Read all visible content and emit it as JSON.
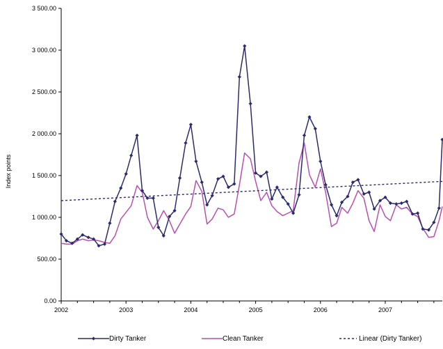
{
  "chart_data": {
    "type": "line",
    "title": "",
    "xlabel": "",
    "ylabel": "Index points",
    "ylim": [
      0,
      3500
    ],
    "xlim": [
      2002,
      2007.88
    ],
    "y_ticks": [
      "0.00",
      "500.00",
      "1 000.00",
      "1 500.00",
      "2 000.00",
      "2 500.00",
      "3 000.00",
      "3 500.00"
    ],
    "x_ticks": [
      "2002",
      "2003",
      "2004",
      "2005",
      "2006",
      "2007"
    ],
    "grid": false,
    "legend_position": "bottom",
    "series": [
      {
        "name": "Dirty Tanker",
        "color": "#2b2a6e",
        "marker": "diamond",
        "x": [
          2002.0,
          2002.08,
          2002.17,
          2002.25,
          2002.33,
          2002.42,
          2002.5,
          2002.58,
          2002.67,
          2002.75,
          2002.83,
          2002.92,
          2003.0,
          2003.08,
          2003.17,
          2003.25,
          2003.33,
          2003.42,
          2003.5,
          2003.58,
          2003.67,
          2003.75,
          2003.83,
          2003.92,
          2004.0,
          2004.08,
          2004.17,
          2004.25,
          2004.33,
          2004.42,
          2004.5,
          2004.58,
          2004.67,
          2004.75,
          2004.83,
          2004.92,
          2005.0,
          2005.08,
          2005.17,
          2005.25,
          2005.33,
          2005.42,
          2005.5,
          2005.58,
          2005.67,
          2005.75,
          2005.83,
          2005.92,
          2006.0,
          2006.08,
          2006.17,
          2006.25,
          2006.33,
          2006.42,
          2006.5,
          2006.58,
          2006.67,
          2006.75,
          2006.83,
          2006.92,
          2007.0,
          2007.08,
          2007.17,
          2007.25,
          2007.33,
          2007.42,
          2007.5,
          2007.58,
          2007.67,
          2007.75,
          2007.83,
          2007.88
        ],
        "values": [
          800,
          720,
          690,
          740,
          790,
          760,
          740,
          660,
          680,
          930,
          1190,
          1350,
          1520,
          1740,
          1980,
          1320,
          1230,
          1230,
          880,
          780,
          1010,
          1080,
          1470,
          1890,
          2110,
          1670,
          1420,
          1150,
          1260,
          1460,
          1490,
          1360,
          1400,
          2680,
          3050,
          2360,
          1530,
          1490,
          1540,
          1220,
          1360,
          1240,
          1160,
          1050,
          1270,
          1980,
          2200,
          2060,
          1670,
          1390,
          1150,
          1020,
          1180,
          1250,
          1420,
          1450,
          1280,
          1300,
          1100,
          1200,
          1240,
          1170,
          1160,
          1170,
          1190,
          1040,
          1050,
          860,
          850,
          940,
          1110,
          1930
        ]
      },
      {
        "name": "Clean Tanker",
        "color": "#b94fb0",
        "marker": "none",
        "x": [
          2002.0,
          2002.08,
          2002.17,
          2002.25,
          2002.33,
          2002.42,
          2002.5,
          2002.58,
          2002.67,
          2002.75,
          2002.83,
          2002.92,
          2003.0,
          2003.08,
          2003.17,
          2003.25,
          2003.33,
          2003.42,
          2003.5,
          2003.58,
          2003.67,
          2003.75,
          2003.83,
          2003.92,
          2004.0,
          2004.08,
          2004.17,
          2004.25,
          2004.33,
          2004.42,
          2004.5,
          2004.58,
          2004.67,
          2004.75,
          2004.83,
          2004.92,
          2005.0,
          2005.08,
          2005.17,
          2005.25,
          2005.33,
          2005.42,
          2005.5,
          2005.58,
          2005.67,
          2005.75,
          2005.83,
          2005.92,
          2006.0,
          2006.08,
          2006.17,
          2006.25,
          2006.33,
          2006.42,
          2006.5,
          2006.58,
          2006.67,
          2006.75,
          2006.83,
          2006.92,
          2007.0,
          2007.08,
          2007.17,
          2007.25,
          2007.33,
          2007.42,
          2007.5,
          2007.58,
          2007.67,
          2007.75,
          2007.83,
          2007.88
        ],
        "values": [
          690,
          680,
          680,
          720,
          740,
          720,
          730,
          720,
          700,
          690,
          780,
          980,
          1060,
          1140,
          1380,
          1300,
          1000,
          860,
          960,
          1080,
          960,
          810,
          920,
          1040,
          1130,
          1440,
          1310,
          920,
          980,
          1110,
          1090,
          1000,
          1040,
          1390,
          1770,
          1700,
          1430,
          1200,
          1300,
          1140,
          1070,
          1020,
          1050,
          1080,
          1650,
          1890,
          1510,
          1360,
          1580,
          1300,
          890,
          930,
          1120,
          1050,
          1170,
          1320,
          1230,
          960,
          830,
          1150,
          1010,
          960,
          1150,
          1100,
          1120,
          1040,
          1010,
          870,
          760,
          770,
          960,
          1130
        ]
      },
      {
        "name": "Linear (Dirty Tanker)",
        "color": "#2b2a6e",
        "style": "dashed",
        "x": [
          2002.0,
          2007.88
        ],
        "values": [
          1200,
          1430
        ]
      }
    ]
  }
}
